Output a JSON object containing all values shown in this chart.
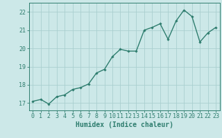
{
  "x": [
    0,
    1,
    2,
    3,
    4,
    5,
    6,
    7,
    8,
    9,
    10,
    11,
    12,
    13,
    14,
    15,
    16,
    17,
    18,
    19,
    20,
    21,
    22,
    23
  ],
  "y": [
    17.1,
    17.2,
    16.95,
    17.35,
    17.45,
    17.75,
    17.85,
    18.05,
    18.65,
    18.85,
    19.55,
    19.95,
    19.85,
    19.85,
    21.0,
    21.15,
    21.35,
    20.5,
    21.5,
    22.1,
    21.75,
    20.35,
    20.85,
    21.15
  ],
  "line_color": "#2e7d6e",
  "marker": "D",
  "marker_size": 1.8,
  "line_width": 1.0,
  "bg_color": "#cce8e8",
  "grid_color": "#aacfcf",
  "xlabel": "Humidex (Indice chaleur)",
  "xlabel_fontsize": 7,
  "tick_fontsize": 6,
  "ylim": [
    16.6,
    22.5
  ],
  "xlim": [
    -0.5,
    23.5
  ],
  "yticks": [
    17,
    18,
    19,
    20,
    21,
    22
  ],
  "xticks": [
    0,
    1,
    2,
    3,
    4,
    5,
    6,
    7,
    8,
    9,
    10,
    11,
    12,
    13,
    14,
    15,
    16,
    17,
    18,
    19,
    20,
    21,
    22,
    23
  ]
}
